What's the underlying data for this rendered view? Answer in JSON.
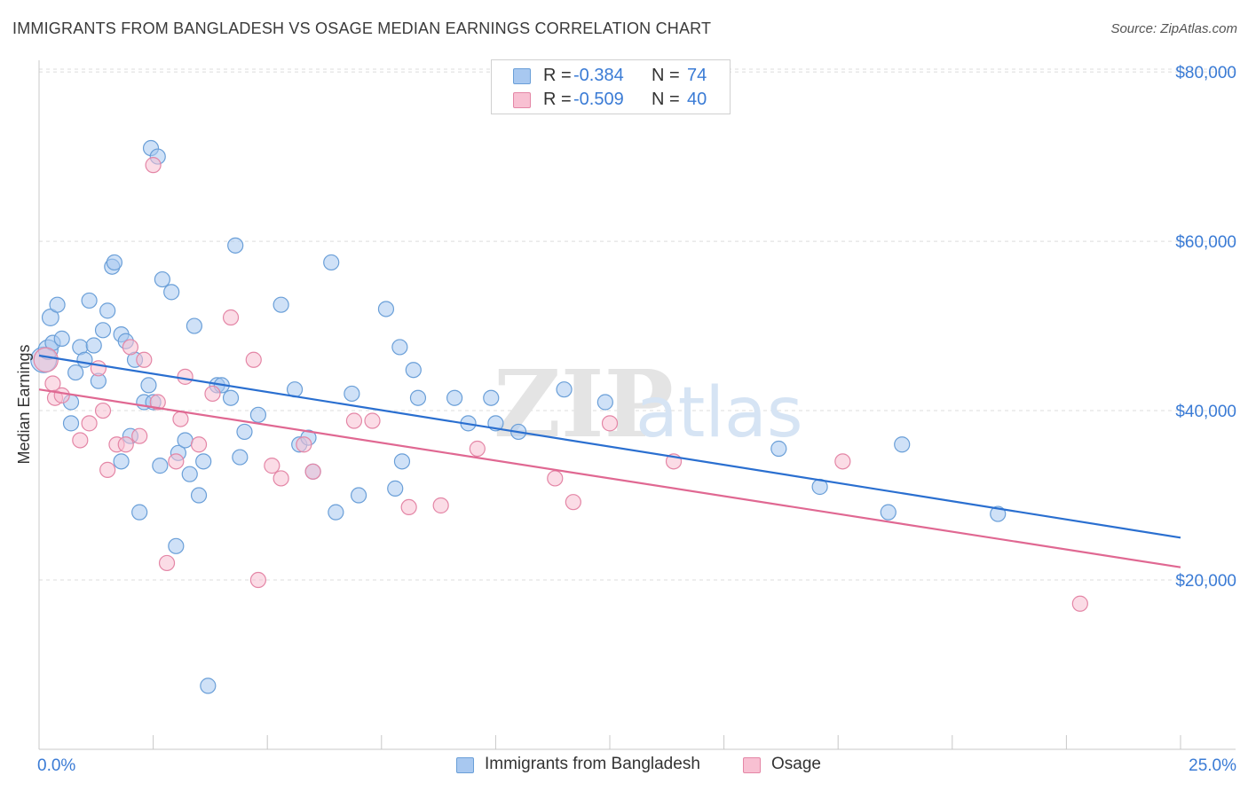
{
  "header": {
    "title": "IMMIGRANTS FROM BANGLADESH VS OSAGE MEDIAN EARNINGS CORRELATION CHART",
    "source": "Source: ZipAtlas.com"
  },
  "watermark": {
    "zip": "ZIP",
    "atlas": "atlas"
  },
  "legend_stats": [
    {
      "r_label": "R =",
      "r_value": "-0.384",
      "n_label": "N =",
      "n_value": "74",
      "color": "#a8c8f0",
      "border": "#6a9fd8"
    },
    {
      "r_label": "R =",
      "r_value": "-0.509",
      "n_label": "N =",
      "n_value": "40",
      "color": "#f8c0d2",
      "border": "#e486a6"
    }
  ],
  "chart_data": {
    "type": "scatter",
    "title": "IMMIGRANTS FROM BANGLADESH VS OSAGE MEDIAN EARNINGS CORRELATION CHART",
    "xlabel": "",
    "ylabel": "Median Earnings",
    "xlim": [
      0,
      25
    ],
    "ylim": [
      0,
      82000
    ],
    "x_tick_labels": [
      "0.0%",
      "25.0%"
    ],
    "y_ticks": [
      20000,
      40000,
      60000,
      80000
    ],
    "y_tick_labels": [
      "$20,000",
      "$40,000",
      "$60,000",
      "$80,000"
    ],
    "grid": true,
    "legend": "bottom",
    "series": [
      {
        "name": "Immigrants from Bangladesh",
        "color": "#6a9fd8",
        "fill": "#a8c8f0",
        "trend": {
          "x": [
            0,
            25
          ],
          "y": [
            46500,
            25000
          ],
          "color": "#2a6fd0"
        },
        "points": [
          [
            0.1,
            46000,
            1.7
          ],
          [
            0.2,
            47200,
            1.3
          ],
          [
            0.25,
            51000,
            1.1
          ],
          [
            0.3,
            48000,
            1.0
          ],
          [
            0.4,
            52500,
            1.0
          ],
          [
            0.5,
            48500,
            1.0
          ],
          [
            0.7,
            41000,
            1.0
          ],
          [
            0.8,
            44500,
            1.0
          ],
          [
            0.9,
            47500,
            1.0
          ],
          [
            1.0,
            46000,
            1.0
          ],
          [
            1.1,
            53000,
            1.0
          ],
          [
            1.2,
            47700,
            1.0
          ],
          [
            1.3,
            43500,
            1.0
          ],
          [
            1.4,
            49500,
            1.0
          ],
          [
            1.5,
            51800,
            1.0
          ],
          [
            1.6,
            57000,
            1.0
          ],
          [
            1.65,
            57500,
            1.0
          ],
          [
            1.8,
            49000,
            1.0
          ],
          [
            1.8,
            34000,
            1.0
          ],
          [
            1.9,
            48200,
            1.0
          ],
          [
            2.0,
            37000,
            1.0
          ],
          [
            2.1,
            46000,
            1.0
          ],
          [
            2.2,
            28000,
            1.0
          ],
          [
            2.3,
            41000,
            1.0
          ],
          [
            2.4,
            43000,
            1.0
          ],
          [
            2.45,
            71000,
            1.0
          ],
          [
            2.5,
            41000,
            1.0
          ],
          [
            2.6,
            70000,
            1.0
          ],
          [
            2.65,
            33500,
            1.0
          ],
          [
            2.7,
            55500,
            1.0
          ],
          [
            2.9,
            54000,
            1.0
          ],
          [
            3.0,
            24000,
            1.0
          ],
          [
            3.05,
            35000,
            1.0
          ],
          [
            3.2,
            36500,
            1.0
          ],
          [
            3.3,
            32500,
            1.0
          ],
          [
            3.4,
            50000,
            1.0
          ],
          [
            3.5,
            30000,
            1.0
          ],
          [
            3.6,
            34000,
            1.0
          ],
          [
            3.7,
            7500,
            1.0
          ],
          [
            3.9,
            43000,
            1.0
          ],
          [
            4.0,
            43000,
            1.0
          ],
          [
            4.2,
            41500,
            1.0
          ],
          [
            4.3,
            59500,
            1.0
          ],
          [
            4.4,
            34500,
            1.0
          ],
          [
            4.5,
            37500,
            1.0
          ],
          [
            4.8,
            39500,
            1.0
          ],
          [
            5.3,
            52500,
            1.0
          ],
          [
            5.6,
            42500,
            1.0
          ],
          [
            5.7,
            36000,
            1.0
          ],
          [
            5.9,
            36800,
            1.0
          ],
          [
            6.0,
            32800,
            1.0
          ],
          [
            6.4,
            57500,
            1.0
          ],
          [
            6.5,
            28000,
            1.0
          ],
          [
            6.85,
            42000,
            1.0
          ],
          [
            7.0,
            30000,
            1.0
          ],
          [
            7.6,
            52000,
            1.0
          ],
          [
            7.8,
            30800,
            1.0
          ],
          [
            7.9,
            47500,
            1.0
          ],
          [
            7.95,
            34000,
            1.0
          ],
          [
            8.2,
            44800,
            1.0
          ],
          [
            8.3,
            41500,
            1.0
          ],
          [
            9.1,
            41500,
            1.0
          ],
          [
            9.4,
            38500,
            1.0
          ],
          [
            9.9,
            41500,
            1.0
          ],
          [
            10.0,
            38500,
            1.0
          ],
          [
            10.5,
            37500,
            1.0
          ],
          [
            11.5,
            42500,
            1.0
          ],
          [
            12.4,
            41000,
            1.0
          ],
          [
            16.2,
            35500,
            1.0
          ],
          [
            17.1,
            31000,
            1.0
          ],
          [
            18.6,
            28000,
            1.0
          ],
          [
            18.9,
            36000,
            1.0
          ],
          [
            21.0,
            27800,
            1.0
          ],
          [
            0.7,
            38500,
            1.0
          ]
        ]
      },
      {
        "name": "Osage",
        "color": "#e486a6",
        "fill": "#f8c0d2",
        "trend": {
          "x": [
            0,
            25
          ],
          "y": [
            42500,
            21500
          ],
          "color": "#e06892"
        },
        "points": [
          [
            0.15,
            46000,
            1.6
          ],
          [
            0.3,
            43200,
            1.0
          ],
          [
            0.35,
            41500,
            1.0
          ],
          [
            0.5,
            41800,
            1.0
          ],
          [
            0.9,
            36500,
            1.0
          ],
          [
            1.1,
            38500,
            1.0
          ],
          [
            1.3,
            45000,
            1.0
          ],
          [
            1.4,
            40000,
            1.0
          ],
          [
            1.5,
            33000,
            1.0
          ],
          [
            1.7,
            36000,
            1.0
          ],
          [
            1.9,
            36000,
            1.0
          ],
          [
            2.0,
            47500,
            1.0
          ],
          [
            2.2,
            37000,
            1.0
          ],
          [
            2.3,
            46000,
            1.0
          ],
          [
            2.5,
            69000,
            1.0
          ],
          [
            2.6,
            41000,
            1.0
          ],
          [
            2.8,
            22000,
            1.0
          ],
          [
            3.0,
            34000,
            1.0
          ],
          [
            3.1,
            39000,
            1.0
          ],
          [
            3.2,
            44000,
            1.0
          ],
          [
            3.5,
            36000,
            1.0
          ],
          [
            3.8,
            42000,
            1.0
          ],
          [
            4.2,
            51000,
            1.0
          ],
          [
            4.7,
            46000,
            1.0
          ],
          [
            4.8,
            20000,
            1.0
          ],
          [
            5.1,
            33500,
            1.0
          ],
          [
            5.3,
            32000,
            1.0
          ],
          [
            5.8,
            36000,
            1.0
          ],
          [
            6.0,
            32800,
            1.0
          ],
          [
            6.9,
            38800,
            1.0
          ],
          [
            7.3,
            38800,
            1.0
          ],
          [
            8.1,
            28600,
            1.0
          ],
          [
            8.8,
            28800,
            1.0
          ],
          [
            9.6,
            35500,
            1.0
          ],
          [
            11.3,
            32000,
            1.0
          ],
          [
            11.7,
            29200,
            1.0
          ],
          [
            12.5,
            38500,
            1.0
          ],
          [
            13.9,
            34000,
            1.0
          ],
          [
            17.6,
            34000,
            1.0
          ],
          [
            22.8,
            17200,
            1.0
          ]
        ]
      }
    ]
  }
}
